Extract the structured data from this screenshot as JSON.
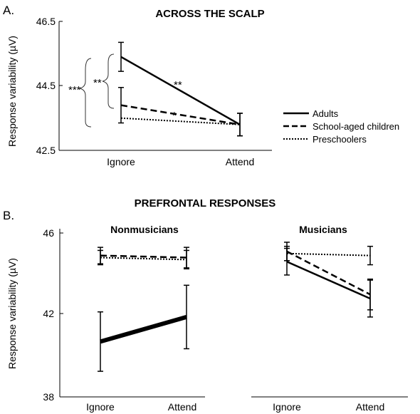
{
  "figure": {
    "legend": {
      "entries": [
        {
          "label": "Adults",
          "style": "solid"
        },
        {
          "label": "School-aged children",
          "style": "dashed"
        },
        {
          "label": "Preschoolers",
          "style": "dotted"
        }
      ]
    }
  },
  "chart_data": [
    {
      "panel": "A.",
      "type": "line",
      "title": "ACROSS THE SCALP",
      "subtitle": "",
      "ylabel": "Response variability (µV)",
      "xlabel": "",
      "categories": [
        "Ignore",
        "Attend"
      ],
      "ylim": [
        42.5,
        46.5
      ],
      "yticks": [
        "42.5",
        "44.5",
        "46.5"
      ],
      "series": [
        {
          "name": "Adults",
          "style": "solid",
          "values": [
            45.4,
            43.3
          ],
          "errors": [
            0.45,
            0.35
          ]
        },
        {
          "name": "School-aged children",
          "style": "dashed",
          "values": [
            43.9,
            43.3
          ],
          "errors": [
            0.55,
            0.35
          ]
        },
        {
          "name": "Preschoolers",
          "style": "dotted",
          "values": [
            43.5,
            43.3
          ],
          "errors": [
            0,
            0
          ]
        }
      ],
      "annotations": [
        {
          "text": "**",
          "between": "Adults Ignore-Attend"
        },
        {
          "text": "*",
          "between": "School-aged children Ignore-Attend"
        },
        {
          "text": "**",
          "between": "Adults vs School-aged children at Ignore"
        },
        {
          "text": "***",
          "between": "Adults vs Preschoolers at Ignore"
        }
      ],
      "grid": false
    },
    {
      "panel": "B.",
      "type": "line",
      "title": "PREFRONTAL RESPONSES",
      "subtitle": "Nonmusicians",
      "ylabel": "Response variability (µV)",
      "xlabel": "",
      "categories": [
        "Ignore",
        "Attend"
      ],
      "ylim": [
        38,
        46
      ],
      "yticks": [
        "38",
        "42",
        "46"
      ],
      "series": [
        {
          "name": "Adults",
          "style": "solid",
          "values": [
            40.7,
            41.9
          ],
          "errors": [
            1.45,
            1.55
          ]
        },
        {
          "name": "School-aged children",
          "style": "dashed",
          "values": [
            44.9,
            44.8
          ],
          "errors": [
            0.4,
            0.5
          ]
        },
        {
          "name": "Preschoolers",
          "style": "dotted",
          "values": [
            44.8,
            44.7
          ],
          "errors": [
            0.35,
            0.45
          ]
        }
      ],
      "grid": false
    },
    {
      "panel": "",
      "type": "line",
      "title": "",
      "subtitle": "Musicians",
      "ylabel": "",
      "xlabel": "",
      "categories": [
        "Ignore",
        "Attend"
      ],
      "ylim": [
        38,
        46
      ],
      "yticks": [],
      "series": [
        {
          "name": "Adults",
          "style": "solid",
          "values": [
            44.6,
            42.8
          ],
          "errors": [
            0.65,
            0.9
          ]
        },
        {
          "name": "School-aged children",
          "style": "dashed",
          "values": [
            45.1,
            43.0
          ],
          "errors": [
            0.45,
            0.75
          ]
        },
        {
          "name": "Preschoolers",
          "style": "dotted",
          "values": [
            45.0,
            44.9
          ],
          "errors": [
            0.35,
            0.45
          ]
        }
      ],
      "grid": false
    }
  ]
}
